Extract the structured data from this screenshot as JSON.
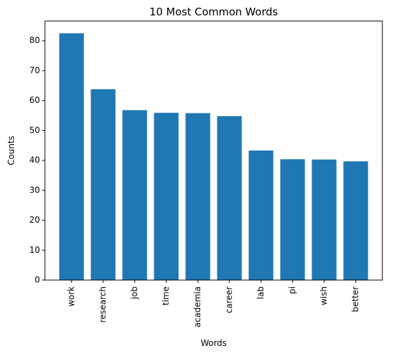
{
  "chart_data": {
    "type": "bar",
    "title": "10 Most Common Words",
    "xlabel": "Words",
    "ylabel": "Counts",
    "categories": [
      "work",
      "research",
      "job",
      "time",
      "academia",
      "career",
      "lab",
      "pi",
      "wish",
      "better"
    ],
    "values": [
      82.5,
      63.8,
      56.8,
      55.9,
      55.8,
      54.8,
      43.3,
      40.4,
      40.3,
      39.7
    ],
    "ylim": [
      0,
      86.6
    ],
    "yticks": [
      0,
      10,
      20,
      30,
      40,
      50,
      60,
      70,
      80
    ],
    "grid": false,
    "legend": "none",
    "bar_color": "#1f77b4"
  }
}
